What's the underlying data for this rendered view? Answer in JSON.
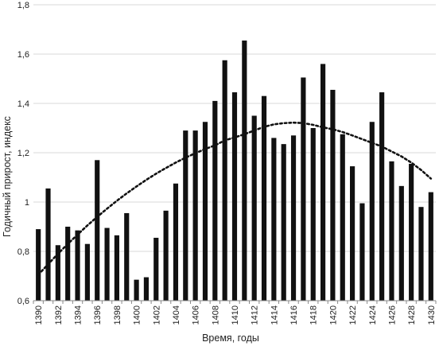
{
  "chart_data": {
    "type": "bar",
    "title": "",
    "xlabel": "Время, годы",
    "ylabel": "Годичный прирост, индекс",
    "ylim": [
      0.6,
      1.8
    ],
    "yticks": [
      "0,6",
      "0,8",
      "1",
      "1,2",
      "1,4",
      "1,6",
      "1,8"
    ],
    "ytick_values": [
      0.6,
      0.8,
      1.0,
      1.2,
      1.4,
      1.6,
      1.8
    ],
    "grid": "horizontal",
    "legend": "none",
    "colors": {
      "bar": "#111111",
      "trend": "#111111",
      "grid": "#d9d9d9",
      "axis": "#888888"
    },
    "categories": [
      "1390",
      "1391",
      "1392",
      "1393",
      "1394",
      "1395",
      "1396",
      "1397",
      "1398",
      "1399",
      "1400",
      "1401",
      "1402",
      "1403",
      "1404",
      "1405",
      "1406",
      "1407",
      "1408",
      "1409",
      "1410",
      "1411",
      "1412",
      "1413",
      "1414",
      "1415",
      "1416",
      "1417",
      "1418",
      "1419",
      "1420",
      "1421",
      "1422",
      "1423",
      "1424",
      "1425",
      "1426",
      "1427",
      "1428",
      "1429",
      "1430"
    ],
    "xtick_labels": [
      "1390",
      "",
      "1392",
      "",
      "1394",
      "",
      "1396",
      "",
      "1398",
      "",
      "1400",
      "",
      "1402",
      "",
      "1404",
      "",
      "1406",
      "",
      "1408",
      "",
      "1410",
      "",
      "1412",
      "",
      "1414",
      "",
      "1416",
      "",
      "1418",
      "",
      "1420",
      "",
      "1422",
      "",
      "1424",
      "",
      "1426",
      "",
      "1428",
      "",
      "1430"
    ],
    "values": [
      0.89,
      1.055,
      0.825,
      0.9,
      0.885,
      0.83,
      1.17,
      0.895,
      0.865,
      0.955,
      0.685,
      0.695,
      0.855,
      0.965,
      1.075,
      1.29,
      1.29,
      1.325,
      1.41,
      1.575,
      1.445,
      1.655,
      1.35,
      1.43,
      1.26,
      1.235,
      1.27,
      1.505,
      1.3,
      1.56,
      1.455,
      1.275,
      1.145,
      0.995,
      1.325,
      1.445,
      1.165,
      1.065,
      1.155,
      0.98,
      1.04
    ],
    "trendline": {
      "type": "polynomial",
      "style": "dotted",
      "x": [
        1390,
        1391,
        1392,
        1393,
        1394,
        1395,
        1396,
        1397,
        1398,
        1399,
        1400,
        1401,
        1402,
        1403,
        1404,
        1405,
        1406,
        1407,
        1408,
        1409,
        1410,
        1411,
        1412,
        1413,
        1414,
        1415,
        1416,
        1417,
        1418,
        1419,
        1420,
        1421,
        1422,
        1423,
        1424,
        1425,
        1426,
        1427,
        1428,
        1429,
        1430
      ],
      "y": [
        0.705,
        0.748,
        0.79,
        0.83,
        0.868,
        0.905,
        0.94,
        0.973,
        1.005,
        1.035,
        1.063,
        1.09,
        1.115,
        1.138,
        1.16,
        1.18,
        1.198,
        1.215,
        1.23,
        1.25,
        1.262,
        1.275,
        1.29,
        1.305,
        1.315,
        1.32,
        1.322,
        1.32,
        1.313,
        1.303,
        1.295,
        1.284,
        1.27,
        1.255,
        1.24,
        1.225,
        1.205,
        1.185,
        1.16,
        1.13,
        1.095
      ]
    }
  }
}
